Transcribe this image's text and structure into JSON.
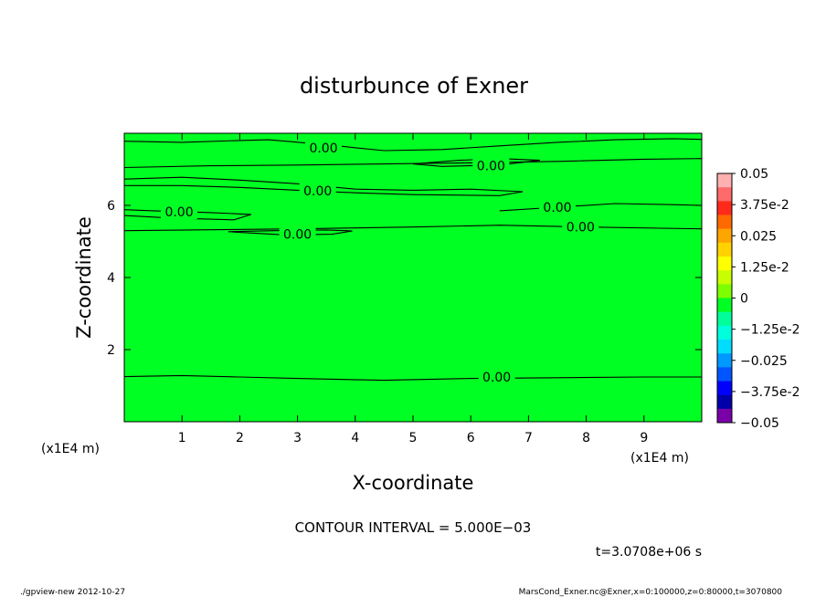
{
  "chart_data": {
    "type": "contour",
    "title": "disturbunce of Exner",
    "xlabel": "X-coordinate",
    "ylabel": "Z-coordinate",
    "x_unit": "(x1E4 m)",
    "y_unit": "(x1E4 m)",
    "xlim": [
      0,
      10
    ],
    "ylim": [
      0,
      8
    ],
    "x_ticks": [
      1,
      2,
      3,
      4,
      5,
      6,
      7,
      8,
      9
    ],
    "y_ticks": [
      2,
      4,
      6
    ],
    "fill_color": "#00ff22",
    "contour_label": "0.00",
    "contours": [
      {
        "points": [
          [
            0.0,
            1.25
          ],
          [
            1.0,
            1.28
          ],
          [
            2.0,
            1.24
          ],
          [
            3.0,
            1.2
          ],
          [
            4.5,
            1.15
          ],
          [
            6.0,
            1.2
          ],
          [
            7.5,
            1.22
          ],
          [
            9.0,
            1.24
          ],
          [
            10.0,
            1.24
          ]
        ],
        "label_at": [
          6.45,
          1.24
        ]
      },
      {
        "points": [
          [
            0.0,
            5.3
          ],
          [
            3.0,
            5.35
          ],
          [
            5.0,
            5.4
          ],
          [
            6.5,
            5.45
          ],
          [
            8.0,
            5.4
          ],
          [
            10.0,
            5.35
          ]
        ],
        "label_at": [
          7.9,
          5.4
        ]
      },
      {
        "points": [
          [
            1.8,
            5.27
          ],
          [
            2.6,
            5.3
          ],
          [
            3.5,
            5.32
          ],
          [
            3.95,
            5.29
          ],
          [
            3.6,
            5.2
          ],
          [
            2.8,
            5.18
          ],
          [
            1.8,
            5.27
          ]
        ],
        "label_at": [
          3.0,
          5.2
        ]
      },
      {
        "points": [
          [
            0.0,
            5.88
          ],
          [
            0.5,
            5.85
          ],
          [
            1.5,
            5.8
          ],
          [
            2.2,
            5.75
          ],
          [
            1.9,
            5.6
          ],
          [
            0.8,
            5.65
          ],
          [
            0.0,
            5.72
          ]
        ],
        "label_at": [
          0.95,
          5.82
        ]
      },
      {
        "points": [
          [
            0.0,
            6.73
          ],
          [
            1.0,
            6.78
          ],
          [
            2.0,
            6.7
          ],
          [
            3.0,
            6.6
          ],
          [
            4.0,
            6.45
          ],
          [
            5.0,
            6.42
          ],
          [
            6.0,
            6.45
          ],
          [
            6.9,
            6.38
          ],
          [
            6.5,
            6.27
          ],
          [
            5.0,
            6.3
          ],
          [
            4.0,
            6.35
          ],
          [
            3.0,
            6.42
          ],
          [
            2.0,
            6.5
          ],
          [
            1.0,
            6.55
          ],
          [
            0.0,
            6.55
          ]
        ],
        "label_at": [
          3.35,
          6.4
        ]
      },
      {
        "points": [
          [
            6.5,
            5.85
          ],
          [
            7.5,
            5.95
          ],
          [
            8.5,
            6.05
          ],
          [
            9.5,
            6.02
          ],
          [
            10.0,
            6.0
          ]
        ],
        "label_at": [
          7.5,
          5.95
        ]
      },
      {
        "points": [
          [
            0.0,
            7.05
          ],
          [
            1.5,
            7.1
          ],
          [
            3.0,
            7.12
          ],
          [
            4.5,
            7.15
          ],
          [
            6.0,
            7.18
          ],
          [
            7.5,
            7.22
          ],
          [
            9.0,
            7.28
          ],
          [
            10.0,
            7.3
          ]
        ],
        "label_at": [
          6.35,
          7.05
        ]
      },
      {
        "points": [
          [
            5.0,
            7.15
          ],
          [
            5.8,
            7.25
          ],
          [
            6.5,
            7.3
          ],
          [
            7.2,
            7.25
          ],
          [
            6.5,
            7.12
          ],
          [
            5.5,
            7.08
          ],
          [
            5.0,
            7.15
          ]
        ],
        "label_at": [
          6.35,
          7.1
        ]
      },
      {
        "points": [
          [
            0.0,
            7.78
          ],
          [
            1.0,
            7.75
          ],
          [
            2.0,
            7.8
          ],
          [
            2.5,
            7.82
          ],
          [
            3.5,
            7.68
          ],
          [
            4.5,
            7.52
          ],
          [
            5.5,
            7.55
          ],
          [
            6.5,
            7.65
          ],
          [
            7.5,
            7.75
          ],
          [
            8.5,
            7.82
          ],
          [
            9.5,
            7.85
          ],
          [
            10.0,
            7.83
          ]
        ],
        "label_at": [
          3.45,
          7.6
        ]
      }
    ],
    "colorbar": {
      "labels": [
        "0.05",
        "3.75e-2",
        "0.025",
        "1.25e-2",
        "0",
        "−1.25e-2",
        "−0.025",
        "−3.75e-2",
        "−0.05"
      ],
      "colors": [
        "#ffb0b0",
        "#ff6b6b",
        "#ff2a1a",
        "#ff6a00",
        "#ffa500",
        "#ffd200",
        "#ffff00",
        "#c8ff00",
        "#7dff00",
        "#00ff22",
        "#00ff9a",
        "#00ffdd",
        "#00ddff",
        "#0099ff",
        "#0055ff",
        "#0000ff",
        "#0000aa",
        "#7a00a8"
      ]
    },
    "contour_interval_label": "CONTOUR INTERVAL = 5.000E−03",
    "time_label": "t=3.0708e+06 s"
  },
  "footer": {
    "left": "./gpview-new  2012-10-27",
    "right": "MarsCond_Exner.nc@Exner,x=0:100000,z=0:80000,t=3070800"
  }
}
